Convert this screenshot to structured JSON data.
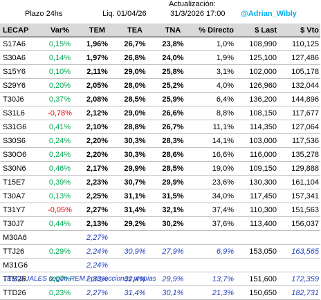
{
  "header": {
    "plazo": "Plazo 24hs",
    "liq": "Liq.  01/04/26",
    "update_label": "Actualización:",
    "update_time": "31/3/2026 17:00",
    "handle": "@Adrian_Wibly"
  },
  "columns": [
    "LECAP",
    "Var%",
    "TEM",
    "TEA",
    "TNA",
    "% Directo",
    "$ Last",
    "$ Vto"
  ],
  "rows": [
    [
      "S17A6",
      "0,15%",
      "1,96%",
      "26,7%",
      "23,8%",
      "1,0%",
      "108,990",
      "110,125"
    ],
    [
      "S30A6",
      "0,14%",
      "1,97%",
      "26,8%",
      "24,0%",
      "1,9%",
      "125,100",
      "127,486"
    ],
    [
      "S15Y6",
      "0,10%",
      "2,11%",
      "29,0%",
      "25,8%",
      "3,1%",
      "102,000",
      "105,178"
    ],
    [
      "S29Y6",
      "0,20%",
      "2,05%",
      "28,0%",
      "25,2%",
      "4,0%",
      "126,960",
      "132,044"
    ],
    [
      "T30J6",
      "0,37%",
      "2,08%",
      "28,5%",
      "25,9%",
      "6,4%",
      "136,200",
      "144,896"
    ],
    [
      "S31L6",
      "-0,78%",
      "2,12%",
      "29,0%",
      "26,6%",
      "8,8%",
      "108,150",
      "117,677"
    ],
    [
      "S31G6",
      "0,41%",
      "2,10%",
      "28,8%",
      "26,7%",
      "11,1%",
      "114,350",
      "127,064"
    ],
    [
      "S30S6",
      "0,24%",
      "2,20%",
      "30,3%",
      "28,3%",
      "14,1%",
      "103,000",
      "117,536"
    ],
    [
      "S30O6",
      "0,24%",
      "2,20%",
      "30,3%",
      "28,6%",
      "16,6%",
      "116,000",
      "135,278"
    ],
    [
      "S30N6",
      "0,46%",
      "2,17%",
      "29,9%",
      "28,5%",
      "19,0%",
      "109,150",
      "129,888"
    ],
    [
      "T15E7",
      "0,39%",
      "2,23%",
      "30,7%",
      "29,9%",
      "23,6%",
      "130,300",
      "161,104"
    ],
    [
      "T30A7",
      "0,13%",
      "2,25%",
      "31,1%",
      "31,5%",
      "34,0%",
      "117,450",
      "157,341"
    ],
    [
      "T31Y7",
      "-0,05%",
      "2,27%",
      "31,4%",
      "32,1%",
      "37,4%",
      "110,300",
      "151,563"
    ],
    [
      "T30J7",
      "0,44%",
      "2,13%",
      "29,2%",
      "30,2%",
      "37,6%",
      "113,400",
      "156,037"
    ],
    [
      "M30A6",
      "",
      "2,27%",
      "",
      "",
      "",
      "",
      ""
    ],
    [
      "TTJ26",
      "0,29%",
      "2,24%",
      "30,9%",
      "27,9%",
      "6,9%",
      "153,050",
      "163,565"
    ],
    [
      "M31G6",
      "",
      "2,24%",
      "",
      "",
      "",
      "",
      ""
    ],
    [
      "TTS26",
      "0,07%",
      "2,33%",
      "32,4%",
      "29,9%",
      "13,7%",
      "151,600",
      "172,359"
    ],
    [
      "TTD26",
      "0,23%",
      "2,27%",
      "31,4%",
      "30,1%",
      "21,3%",
      "150,650",
      "182,731"
    ]
  ],
  "footnote": "TEM DUALES según REM / proyecciones propias",
  "colors": {
    "header_bg": "#d9d9d9",
    "positive": "#00a651",
    "negative": "#e00000",
    "blue": "#1f3fbf",
    "handle": "#00b0f0"
  }
}
